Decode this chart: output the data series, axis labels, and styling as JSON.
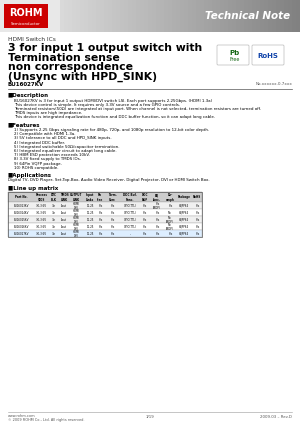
{
  "title_main_lines": [
    "3 for input 1 output switch with",
    "Termination sense",
    "non correspondence",
    "(Unsync with HPD_SINK)"
  ],
  "subtitle": "HDMI Switch ICs",
  "part_number": "BU16027KV",
  "doc_number": "No.xxxxxx.0.7xxx",
  "technical_note": "Technical Note",
  "rohm_color": "#cc0000",
  "description_title": "■Description",
  "description_lines": [
    "BU16027KV is 3 for input 1 output HDMI/DVI switch LSI. Each port supports 2.25Gbps. (HDMI 1.3a)",
    "This device control is simple. It requires only 3.3V source and a few GPIO controls.",
    "Terminated resistors(50Ω) are integrated at input port. When channel is not selected, termination resistors are turned off.",
    "TMDS inputs are high impedance.",
    "This device is integrated equalization function and DDC buffer function, so it can adapt long cable."
  ],
  "features_title": "■Features",
  "features_lines": [
    "1) Supports 2.25 Gbps signaling rate for 480p, 720p, and 1080p resolution to 12-bit color depth.",
    "2) Compatible with HDMI 1.3a.",
    "3) 5V tolerance to all DDC and HPD_SINK inputs.",
    "4) Integrated DDC buffer.",
    "5) Integrated switchable 50Ω/capacitor termination.",
    "6) Integrated equalizer circuit to adapt long cable.",
    "7) HBM ESD protection exceeds 10kV.",
    "8) 3.3V fixed supply to TMDS IOs.",
    "9) 64Pin VQFP package.",
    "10) ROHS compatible."
  ],
  "applications_title": "■Applications",
  "applications_text": "Digital TV, DVD Player, Set-Top-Box, Audio Video Receiver, Digital Projector, DVI or HDMI Switch Box.",
  "lineup_title": "■Line up matrix",
  "footer_left": "www.rohm.com",
  "footer_left2": "© 2009 ROHM Co., Ltd. All rights reserved.",
  "footer_center": "1/19",
  "footer_right": "2009.03 – Rev.D",
  "bg_color": "#ffffff",
  "text_color": "#000000",
  "table_col_headers": [
    "Part No.",
    "Process\nVIOS",
    "DTC\nBLK",
    "TMDS\nLINK",
    "OUTPUT\nLINK",
    "Input\nLinks",
    "Pb\nfree",
    "Term.\nCorr.",
    "DDC Buf.\nFunc.",
    "DDC\nBUF",
    "EQ\nfunc.",
    "De-\nemph",
    "Package",
    "RoHS"
  ],
  "table_rows": [
    [
      "BU16023KV",
      "3.0-3.6V",
      "3in",
      "1out",
      "HDMI\nDVI",
      "11.25",
      "Yes",
      "Yes",
      "GPIO(TTL)",
      "Yes",
      "Yes\n(MDP)",
      "Yes",
      "VQFP64",
      "Yes"
    ],
    [
      "BU16024KV",
      "3.0-3.6V",
      "3in",
      "1out",
      "HDMI\nDVI",
      "11.25",
      "Yes",
      "Yes",
      "GPIO(TTL)",
      "Yes",
      "Yes",
      "No",
      "VQFP64",
      "Yes"
    ],
    [
      "BU16025KV",
      "3.0-3.6V",
      "3in",
      "1out",
      "HDMI\nDVI",
      "11.25",
      "Yes",
      "Yes",
      "GPIO(TTL)",
      "Yes",
      "Yes",
      "No\n(MDP)",
      "VQFP64",
      "Yes"
    ],
    [
      "BU16026KV",
      "3.0-3.6V",
      "3in",
      "1out",
      "HDMI\nDVI",
      "11.25",
      "Yes",
      "Yes",
      "GPIO(TTL)",
      "Yes",
      "Yes",
      "No\n(MDP)",
      "VQFP64",
      "Yes"
    ],
    [
      "BU16027KV",
      "3.0-3.6V",
      "3in",
      "1out",
      "HDMI\nDVI",
      "11.25",
      "Yes",
      "Yes",
      "-",
      "Yes",
      "Yes",
      "Yes",
      "VQFP64",
      "Yes"
    ]
  ],
  "highlight_row": 4
}
